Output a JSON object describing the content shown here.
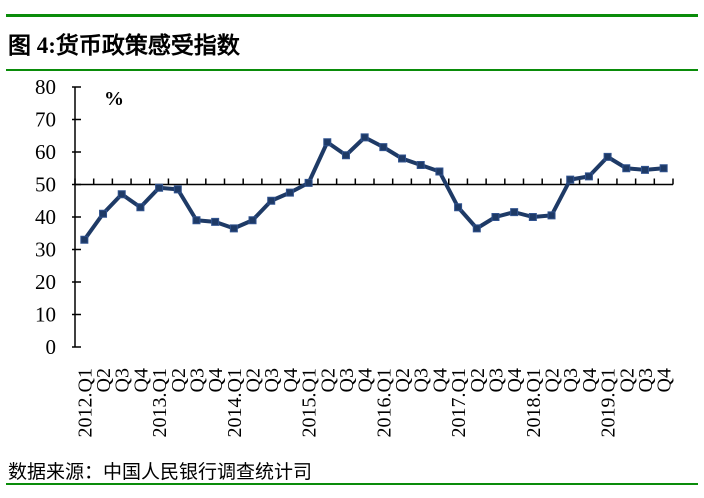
{
  "header": {
    "title": "图 4:货币政策感受指数"
  },
  "footer": {
    "source": "数据来源：中国人民银行调查统计司"
  },
  "colors": {
    "accent_rule": "#0a8c0a",
    "line": "#1e3a66",
    "marker_edge": "#31538f",
    "axis": "#000000",
    "text": "#000000"
  },
  "chart_data": {
    "type": "line",
    "unit_label": "%",
    "categories": [
      "2012.Q1",
      "Q2",
      "Q3",
      "Q4",
      "2013.Q1",
      "Q2",
      "Q3",
      "Q4",
      "2014.Q1",
      "Q2",
      "Q3",
      "Q4",
      "2015.Q1",
      "Q2",
      "Q3",
      "Q4",
      "2016.Q1",
      "Q2",
      "Q3",
      "Q4",
      "2017.Q1",
      "Q2",
      "Q3",
      "Q4",
      "2018.Q1",
      "Q2",
      "Q3",
      "Q4",
      "2019.Q1",
      "Q2",
      "Q3",
      "Q4"
    ],
    "values": [
      33,
      41,
      47,
      43,
      49,
      48.5,
      39,
      38.5,
      36.5,
      39,
      45,
      47.5,
      50.5,
      63,
      59,
      64.5,
      61.5,
      58,
      56,
      54,
      43,
      36.5,
      40,
      41.5,
      40,
      40.5,
      51.5,
      52.5,
      58.5,
      55,
      54.5,
      55
    ],
    "ylim": [
      0,
      80
    ],
    "yticks": [
      0,
      10,
      20,
      30,
      40,
      50,
      60,
      70,
      80
    ],
    "axis_cross_y": 50,
    "grid": false,
    "legend": "none",
    "marker": "square"
  }
}
